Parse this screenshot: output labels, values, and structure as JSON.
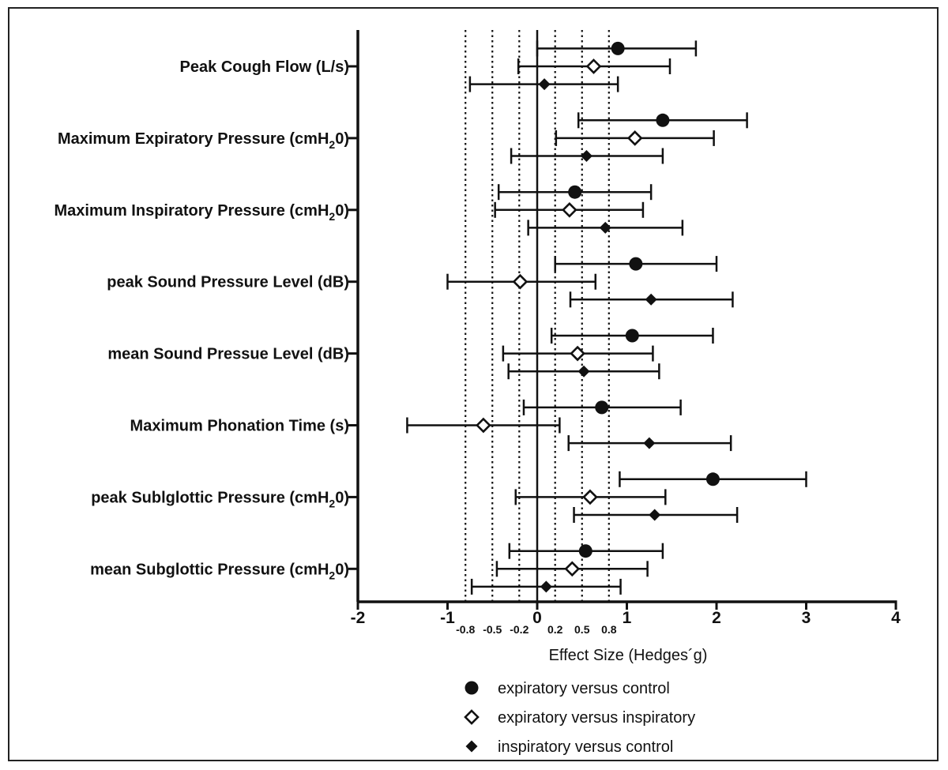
{
  "chart_data": {
    "type": "forest",
    "xlabel": "Effect Size (Hedges´g)",
    "xlim": [
      -2,
      4
    ],
    "xticks": [
      -2,
      -1,
      0,
      1,
      2,
      3,
      4
    ],
    "reference_lines": [
      {
        "value": -0.8,
        "label": "-0.8"
      },
      {
        "value": -0.5,
        "label": "-0.5"
      },
      {
        "value": -0.2,
        "label": "-0.2"
      },
      {
        "value": 0.2,
        "label": "0.2"
      },
      {
        "value": 0.5,
        "label": "0.5"
      },
      {
        "value": 0.8,
        "label": "0.8"
      }
    ],
    "categories": [
      {
        "text": "Peak Cough Flow (L/s)"
      },
      {
        "text": "Maximum Expiratory Pressure (cmH",
        "sub": "2",
        "after": "0)"
      },
      {
        "text": "Maximum Inspiratory Pressure (cmH",
        "sub": "2",
        "after": "0)"
      },
      {
        "text": "peak Sound Pressure Level  (dB)"
      },
      {
        "text": "mean Sound Pressue Level (dB)"
      },
      {
        "text": "Maximum Phonation Time (s)"
      },
      {
        "text": "peak Sublglottic Pressure (cmH",
        "sub": "2",
        "after": "0)"
      },
      {
        "text": "mean Subglottic Pressure (cmH",
        "sub": "2",
        "after": "0)"
      }
    ],
    "series": [
      {
        "name": "expiratory versus control",
        "marker": "filled-circle",
        "points": [
          {
            "est": 0.9,
            "lo": 0.0,
            "hi": 1.77
          },
          {
            "est": 1.4,
            "lo": 0.46,
            "hi": 2.34
          },
          {
            "est": 0.42,
            "lo": -0.43,
            "hi": 1.27
          },
          {
            "est": 1.1,
            "lo": 0.2,
            "hi": 2.0
          },
          {
            "est": 1.06,
            "lo": 0.16,
            "hi": 1.96
          },
          {
            "est": 0.72,
            "lo": -0.15,
            "hi": 1.6
          },
          {
            "est": 1.96,
            "lo": 0.92,
            "hi": 3.0
          },
          {
            "est": 0.54,
            "lo": -0.31,
            "hi": 1.4
          }
        ]
      },
      {
        "name": "expiratory versus inspiratory",
        "marker": "open-diamond",
        "points": [
          {
            "est": 0.63,
            "lo": -0.21,
            "hi": 1.48
          },
          {
            "est": 1.09,
            "lo": 0.21,
            "hi": 1.97
          },
          {
            "est": 0.36,
            "lo": -0.47,
            "hi": 1.18
          },
          {
            "est": -0.19,
            "lo": -1.0,
            "hi": 0.65
          },
          {
            "est": 0.45,
            "lo": -0.38,
            "hi": 1.29
          },
          {
            "est": -0.6,
            "lo": -1.45,
            "hi": 0.25
          },
          {
            "est": 0.59,
            "lo": -0.24,
            "hi": 1.43
          },
          {
            "est": 0.39,
            "lo": -0.45,
            "hi": 1.23
          }
        ]
      },
      {
        "name": "inspiratory versus control",
        "marker": "filled-diamond",
        "points": [
          {
            "est": 0.08,
            "lo": -0.75,
            "hi": 0.9
          },
          {
            "est": 0.55,
            "lo": -0.29,
            "hi": 1.4
          },
          {
            "est": 0.76,
            "lo": -0.1,
            "hi": 1.62
          },
          {
            "est": 1.27,
            "lo": 0.37,
            "hi": 2.18
          },
          {
            "est": 0.52,
            "lo": -0.32,
            "hi": 1.36
          },
          {
            "est": 1.25,
            "lo": 0.35,
            "hi": 2.16
          },
          {
            "est": 1.31,
            "lo": 0.41,
            "hi": 2.23
          },
          {
            "est": 0.1,
            "lo": -0.73,
            "hi": 0.93
          }
        ]
      }
    ],
    "legend": {
      "position": "bottom-center"
    }
  }
}
